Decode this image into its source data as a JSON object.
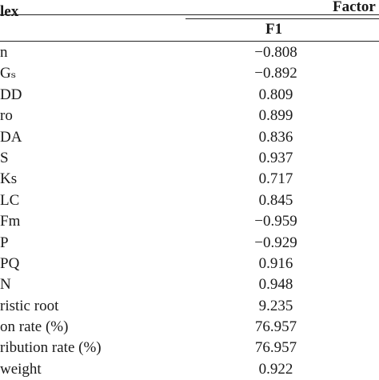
{
  "header": {
    "index_label": "lex",
    "factor_label": "Factor",
    "f1_label": "F1"
  },
  "rows": [
    {
      "index": "n",
      "f1": "−0.808"
    },
    {
      "index": "Gₛ",
      "f1": "−0.892"
    },
    {
      "index": "DD",
      "f1": "0.809"
    },
    {
      "index": "ro",
      "f1": "0.899"
    },
    {
      "index": "DA",
      "f1": "0.836"
    },
    {
      "index": "S",
      "f1": "0.937"
    },
    {
      "index": "Ks",
      "f1": "0.717"
    },
    {
      "index": "LC",
      "f1": "0.845"
    },
    {
      "index": "Fm",
      "f1": "−0.959"
    },
    {
      "index": "P",
      "f1": "−0.929"
    },
    {
      "index": "PQ",
      "f1": "0.916"
    },
    {
      "index": "N",
      "f1": "0.948"
    },
    {
      "index": "ristic root",
      "f1": "9.235"
    },
    {
      "index": "on rate (%)",
      "f1": "76.957"
    },
    {
      "index": "ribution rate (%)",
      "f1": "76.957"
    },
    {
      "index": "weight",
      "f1": "0.922"
    }
  ]
}
